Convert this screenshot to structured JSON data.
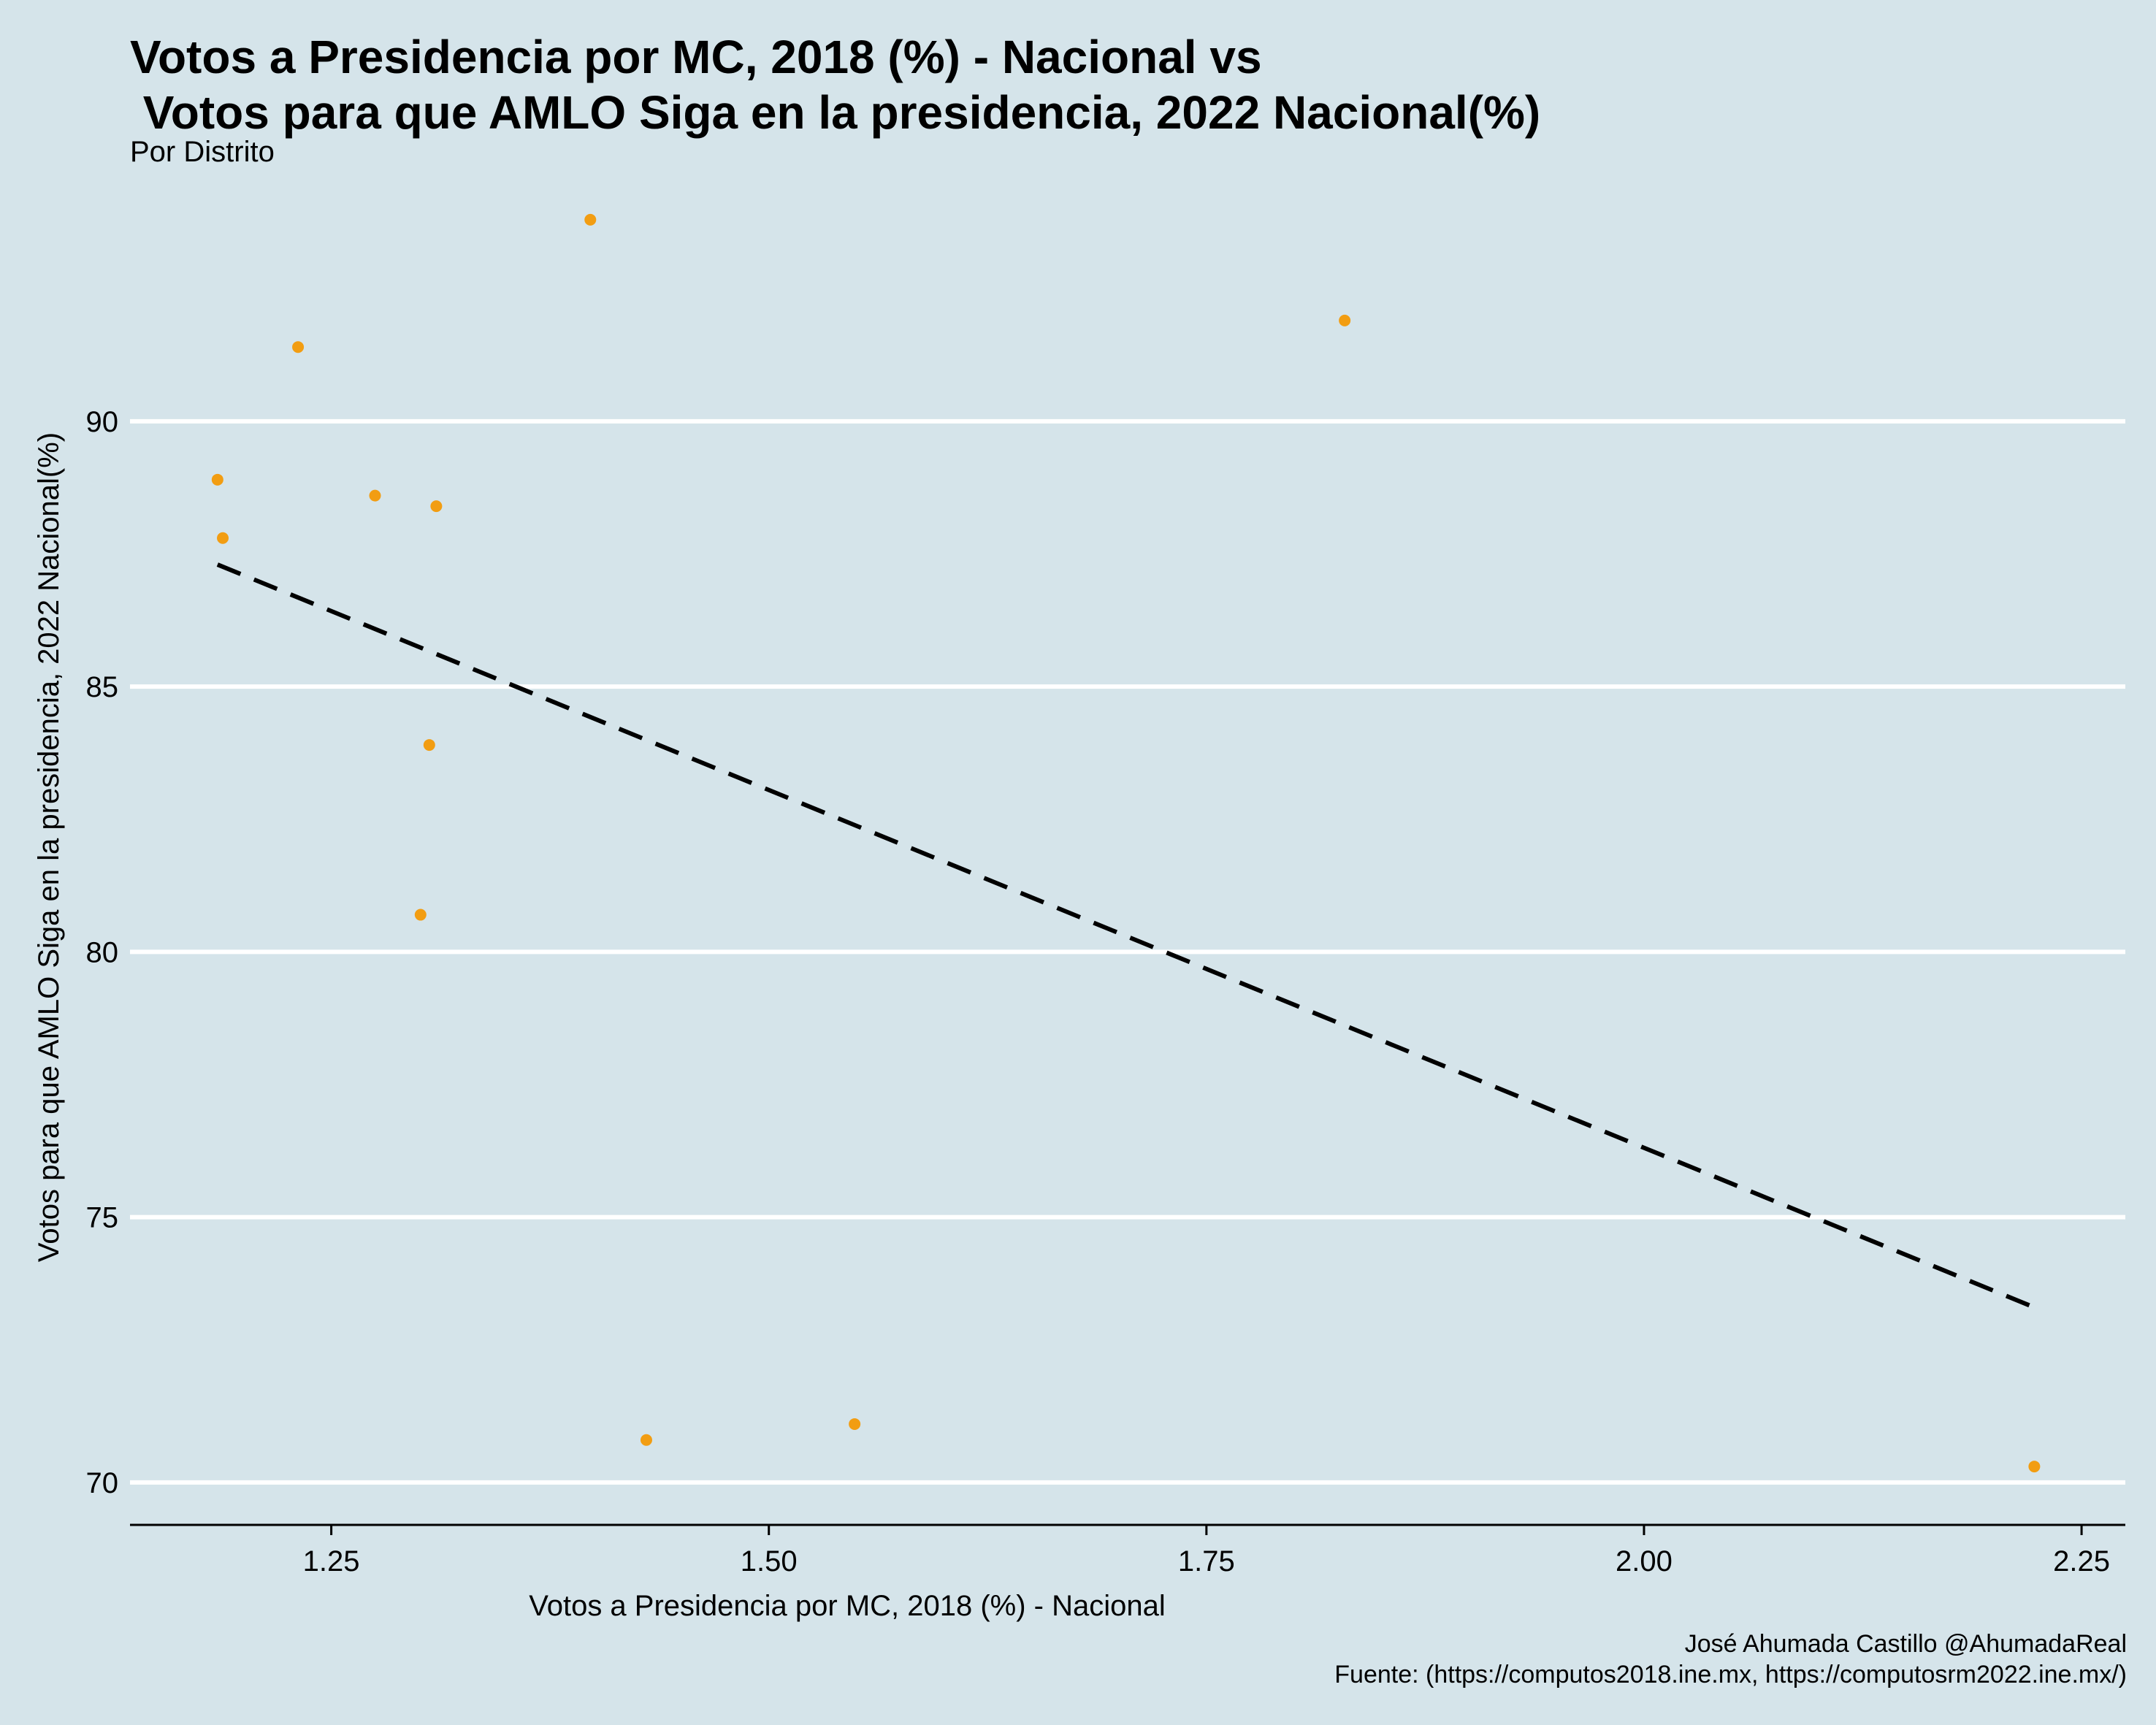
{
  "title": "Votos a Presidencia por MC, 2018 (%) - Nacional vs\n Votos para que AMLO Siga en la presidencia, 2022 Nacional(%)",
  "subtitle": "Por Distrito",
  "caption": {
    "line1": "José Ahumada Castillo @AhumadaReal",
    "line2": "Fuente: (https://computos2018.ine.mx, https://computosrm2022.ine.mx/)"
  },
  "colors": {
    "background": "#d5e4ea",
    "point": "#f29d12",
    "grid": "#ffffff",
    "trend": "#000000"
  },
  "chart_data": {
    "type": "scatter",
    "xlabel": "Votos a Presidencia por MC, 2018 (%) - Nacional",
    "ylabel": "Votos para que AMLO Siga en la presidencia, 2022 Nacional(%)",
    "xlim": [
      1.135,
      2.275
    ],
    "ylim": [
      69.2,
      94.5
    ],
    "xticks": [
      1.25,
      1.5,
      1.75,
      2.0,
      2.25
    ],
    "xtick_labels": [
      "1.25",
      "1.50",
      "1.75",
      "2.00",
      "2.25"
    ],
    "yticks": [
      70,
      75,
      80,
      85,
      90
    ],
    "ytick_labels": [
      "70",
      "75",
      "80",
      "85",
      "90"
    ],
    "grid": "horizontal major lines",
    "points": [
      {
        "x": 1.185,
        "y": 88.9
      },
      {
        "x": 1.188,
        "y": 87.8
      },
      {
        "x": 1.231,
        "y": 91.4
      },
      {
        "x": 1.275,
        "y": 88.6
      },
      {
        "x": 1.31,
        "y": 88.4
      },
      {
        "x": 1.306,
        "y": 83.9
      },
      {
        "x": 1.301,
        "y": 80.7
      },
      {
        "x": 1.398,
        "y": 93.8
      },
      {
        "x": 1.43,
        "y": 70.8
      },
      {
        "x": 1.549,
        "y": 71.1
      },
      {
        "x": 1.829,
        "y": 91.9
      },
      {
        "x": 2.223,
        "y": 70.3
      }
    ],
    "trendline": {
      "style": "dashed",
      "x": [
        1.185,
        2.223
      ],
      "y": [
        87.3,
        73.3
      ]
    }
  }
}
